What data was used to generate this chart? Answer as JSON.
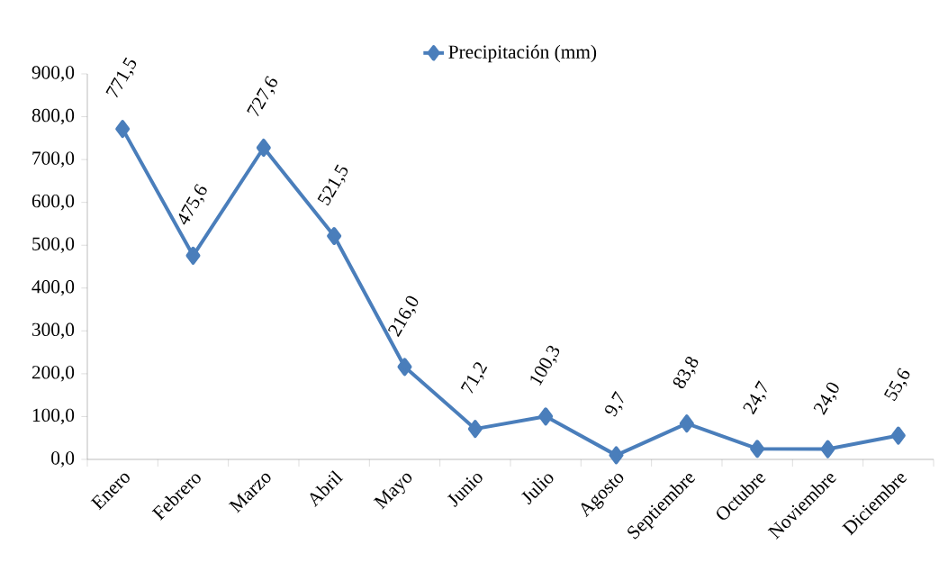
{
  "chart_data": {
    "type": "line",
    "categories": [
      "Enero",
      "Febrero",
      "Marzo",
      "Abril",
      "Mayo",
      "Junio",
      "Julio",
      "Agosto",
      "Septiembre",
      "Octubre",
      "Noviembre",
      "Diciembre"
    ],
    "series": [
      {
        "name": "Precipitación (mm)",
        "color": "#4a7ebb",
        "values": [
          771.5,
          475.6,
          727.6,
          521.5,
          216.0,
          71.2,
          100.3,
          9.7,
          83.8,
          24.7,
          24.0,
          55.6
        ],
        "value_labels": [
          "771,5",
          "475,6",
          "727,6",
          "521,5",
          "216,0",
          "71,2",
          "100,3",
          "9,7",
          "83,8",
          "24,7",
          "24,0",
          "55,6"
        ]
      }
    ],
    "ylim": [
      0,
      900
    ],
    "yticks": [
      {
        "value": 0,
        "label": "0,0"
      },
      {
        "value": 100,
        "label": "100,0"
      },
      {
        "value": 200,
        "label": "200,0"
      },
      {
        "value": 300,
        "label": "300,0"
      },
      {
        "value": 400,
        "label": "400,0"
      },
      {
        "value": 500,
        "label": "500,0"
      },
      {
        "value": 600,
        "label": "600,0"
      },
      {
        "value": 700,
        "label": "700,0"
      },
      {
        "value": 800,
        "label": "800,0"
      },
      {
        "value": 900,
        "label": "900,0"
      }
    ],
    "grid": false,
    "legend": "top",
    "marker": "diamond",
    "line_style": "solid"
  }
}
